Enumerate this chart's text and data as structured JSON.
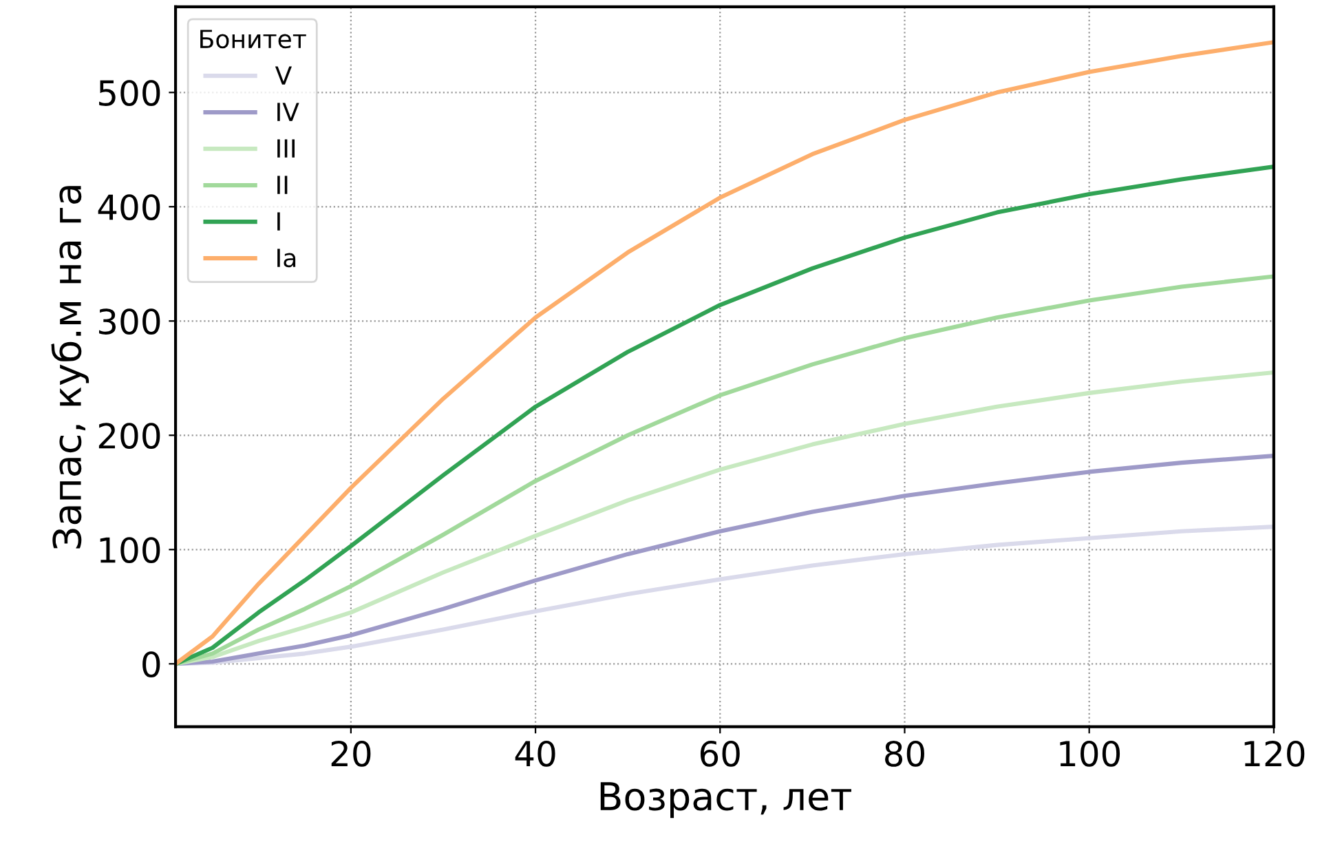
{
  "chart_data": {
    "type": "line",
    "xlabel": "Возраст, лет",
    "ylabel": "Запас, куб.м на га",
    "legend_title": "Бонитет",
    "x": [
      1,
      5,
      10,
      15,
      20,
      30,
      40,
      50,
      60,
      70,
      80,
      90,
      100,
      110,
      120
    ],
    "series": [
      {
        "name": "V",
        "color": "#dadaeb",
        "values": [
          0,
          1,
          5,
          9,
          15,
          30,
          46,
          61,
          74,
          86,
          96,
          104,
          110,
          116,
          120
        ]
      },
      {
        "name": "IV",
        "color": "#9e9ac8",
        "values": [
          0,
          2,
          9,
          16,
          25,
          48,
          73,
          96,
          116,
          133,
          147,
          158,
          168,
          176,
          182
        ]
      },
      {
        "name": "III",
        "color": "#c7e9c0",
        "values": [
          0,
          6,
          20,
          32,
          45,
          80,
          112,
          143,
          170,
          192,
          210,
          225,
          237,
          247,
          255
        ]
      },
      {
        "name": "II",
        "color": "#a1d99b",
        "values": [
          0,
          9,
          30,
          48,
          68,
          113,
          160,
          200,
          235,
          262,
          285,
          303,
          318,
          330,
          339
        ]
      },
      {
        "name": "I",
        "color": "#31a354",
        "values": [
          0,
          14,
          45,
          73,
          103,
          165,
          225,
          273,
          314,
          346,
          373,
          395,
          411,
          424,
          435
        ]
      },
      {
        "name": "Ia",
        "color": "#fdae6b",
        "values": [
          0,
          24,
          70,
          112,
          154,
          232,
          303,
          360,
          408,
          446,
          476,
          500,
          518,
          532,
          544
        ]
      }
    ],
    "xlim": [
      1,
      120
    ],
    "ylim": [
      -55,
      575
    ],
    "xticks": [
      20,
      40,
      60,
      80,
      100,
      120
    ],
    "yticks": [
      0,
      100,
      200,
      300,
      400,
      500
    ],
    "grid": true,
    "legend": "top left",
    "marker": "none",
    "line_style": "solid"
  }
}
